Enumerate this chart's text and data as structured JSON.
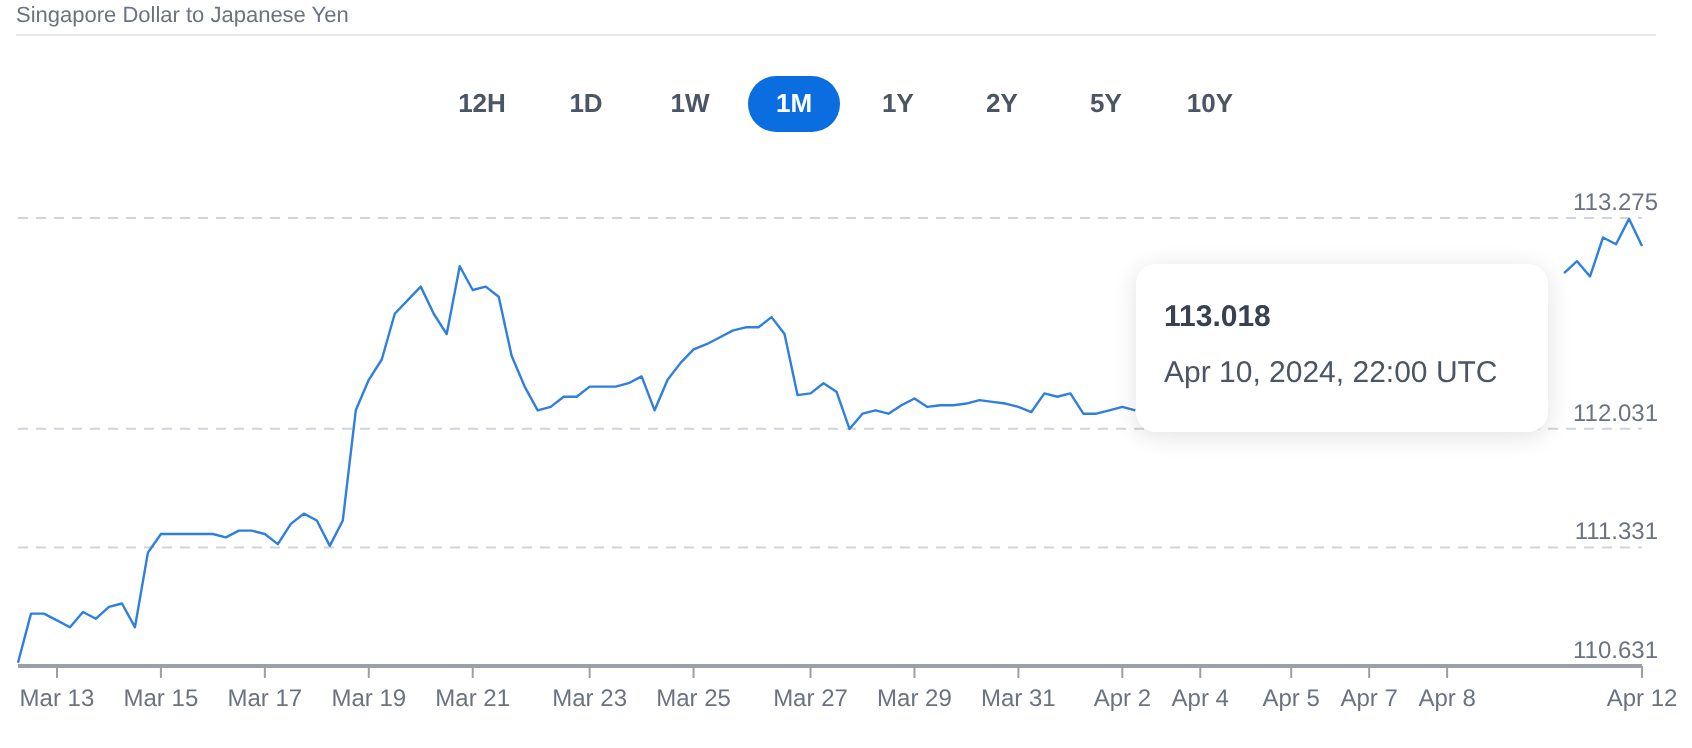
{
  "chart_data": {
    "type": "line",
    "title": "Singapore Dollar to Japanese Yen",
    "categories": [
      null,
      null,
      null,
      "Mar 13",
      null,
      null,
      null,
      null,
      null,
      null,
      null,
      "Mar 15",
      null,
      null,
      null,
      null,
      null,
      null,
      null,
      "Mar 17",
      null,
      null,
      null,
      null,
      null,
      null,
      null,
      "Mar 19",
      null,
      null,
      null,
      null,
      null,
      null,
      null,
      "Mar 21",
      null,
      null,
      null,
      null,
      null,
      null,
      null,
      null,
      "Mar 23",
      null,
      null,
      null,
      null,
      null,
      null,
      null,
      "Mar 25",
      null,
      null,
      null,
      null,
      null,
      null,
      null,
      null,
      "Mar 27",
      null,
      null,
      null,
      null,
      null,
      null,
      null,
      "Mar 29",
      null,
      null,
      null,
      null,
      null,
      null,
      null,
      "Mar 31",
      null,
      null,
      null,
      null,
      null,
      null,
      null,
      "Apr 2",
      null,
      null,
      null,
      null,
      null,
      "Apr 4",
      null,
      null,
      null,
      null,
      null,
      null,
      "Apr 5",
      null,
      null,
      null,
      null,
      null,
      "Apr 7",
      null,
      null,
      null,
      null,
      null,
      "Apr 8",
      null,
      null,
      null,
      null,
      null,
      null,
      null,
      null,
      null,
      null,
      null,
      null,
      null,
      null,
      "Apr 12"
    ],
    "series": [
      {
        "color": "#2e7fe0",
        "values": [
          110.65,
          110.94,
          110.94,
          110.9,
          110.86,
          110.95,
          110.91,
          110.98,
          111.0,
          110.86,
          111.3,
          111.41,
          111.41,
          111.41,
          111.41,
          111.41,
          111.39,
          111.43,
          111.43,
          111.41,
          111.35,
          111.47,
          111.53,
          111.49,
          111.34,
          111.49,
          112.14,
          112.32,
          112.44,
          112.71,
          112.79,
          112.87,
          112.71,
          112.59,
          112.99,
          112.85,
          112.87,
          112.81,
          112.46,
          112.28,
          112.14,
          112.16,
          112.22,
          112.22,
          112.28,
          112.28,
          112.28,
          112.3,
          112.34,
          112.14,
          112.32,
          112.42,
          112.5,
          112.53,
          112.57,
          112.61,
          112.63,
          112.63,
          112.69,
          112.59,
          112.23,
          112.24,
          112.3,
          112.25,
          112.03,
          112.12,
          112.14,
          112.12,
          112.17,
          112.21,
          112.16,
          112.17,
          112.17,
          112.18,
          112.2,
          112.19,
          112.18,
          112.16,
          112.13,
          112.24,
          112.22,
          112.24,
          112.12,
          112.12,
          112.14,
          112.16,
          112.14,
          null,
          null,
          null,
          null,
          null,
          null,
          null,
          null,
          null,
          null,
          null,
          null,
          null,
          null,
          null,
          null,
          null,
          null,
          null,
          null,
          null,
          null,
          null,
          null,
          null,
          null,
          null,
          null,
          null,
          null,
          null,
          null,
          112.95,
          113.02,
          112.93,
          113.16,
          113.12,
          113.27,
          113.11
        ]
      }
    ],
    "ylim": [
      110.631,
      113.275
    ],
    "yticks": [
      110.631,
      111.331,
      112.031,
      113.275
    ],
    "grid": "y",
    "marker": "none",
    "line_style": "solid",
    "annotations": [
      "113.018",
      "Apr 10, 2024, 22:00 UTC",
      "12H",
      "1D",
      "1W",
      "1M",
      "1Y",
      "2Y",
      "5Y",
      "10Y"
    ]
  }
}
